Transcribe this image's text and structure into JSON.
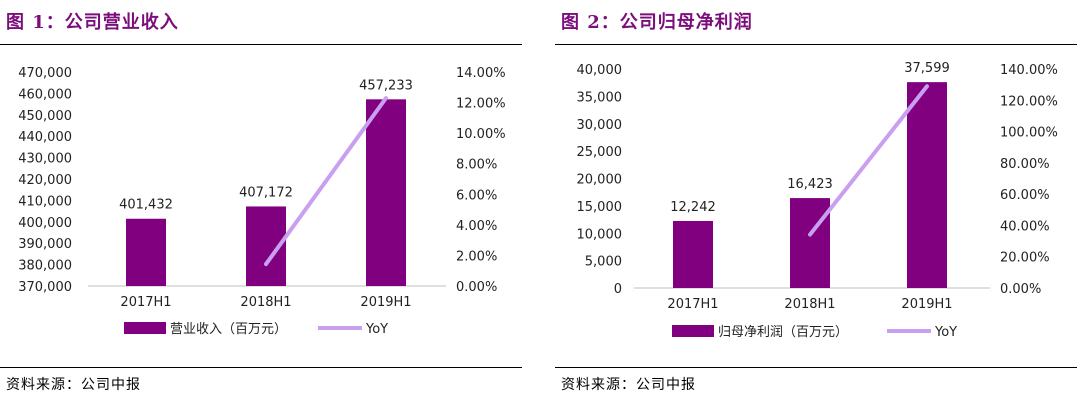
{
  "charts": [
    {
      "title": "图 1：公司营业收入",
      "source": "资料来源：公司中报",
      "colors": {
        "bar": "#800080",
        "line": "#c9a0f0"
      },
      "chart_data": {
        "type": "bar+line",
        "categories": [
          "2017H1",
          "2018H1",
          "2019H1"
        ],
        "series": [
          {
            "name": "营业收入（百万元）",
            "type": "bar",
            "axis": "left",
            "values": [
              401432,
              407172,
              457233
            ]
          },
          {
            "name": "YoY",
            "type": "line",
            "axis": "right",
            "values": [
              null,
              1.43,
              12.29
            ]
          }
        ],
        "data_labels": [
          "401,432",
          "407,172",
          "457,233"
        ],
        "yleft": {
          "min": 370000,
          "max": 470000,
          "ticks": [
            "370,000",
            "380,000",
            "390,000",
            "400,000",
            "410,000",
            "420,000",
            "430,000",
            "440,000",
            "450,000",
            "460,000",
            "470,000"
          ]
        },
        "yright": {
          "min": 0,
          "max": 14,
          "ticks": [
            "0.00%",
            "2.00%",
            "4.00%",
            "6.00%",
            "8.00%",
            "10.00%",
            "12.00%",
            "14.00%"
          ]
        },
        "legend_position": "bottom",
        "grid": false
      }
    },
    {
      "title": "图 2：公司归母净利润",
      "source": "资料来源：公司中报",
      "colors": {
        "bar": "#800080",
        "line": "#c9a0f0"
      },
      "chart_data": {
        "type": "bar+line",
        "categories": [
          "2017H1",
          "2018H1",
          "2019H1"
        ],
        "series": [
          {
            "name": "归母净利润（百万元）",
            "type": "bar",
            "axis": "left",
            "values": [
              12242,
              16423,
              37599
            ]
          },
          {
            "name": "YoY",
            "type": "line",
            "axis": "right",
            "values": [
              null,
              34.15,
              128.94
            ]
          }
        ],
        "data_labels": [
          "12,242",
          "16,423",
          "37,599"
        ],
        "yleft": {
          "min": 0,
          "max": 40000,
          "ticks": [
            "0",
            "5,000",
            "10,000",
            "15,000",
            "20,000",
            "25,000",
            "30,000",
            "35,000",
            "40,000"
          ]
        },
        "yright": {
          "min": 0,
          "max": 140,
          "ticks": [
            "0.00%",
            "20.00%",
            "40.00%",
            "60.00%",
            "80.00%",
            "100.00%",
            "120.00%",
            "140.00%"
          ]
        },
        "legend_position": "bottom",
        "grid": false
      }
    }
  ]
}
